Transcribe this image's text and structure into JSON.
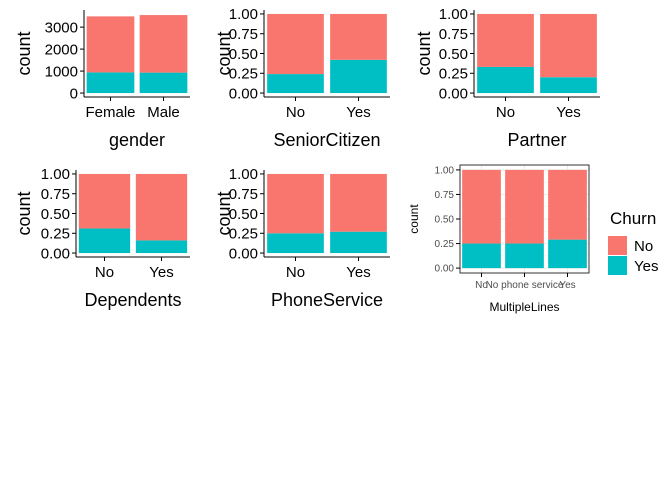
{
  "colors": {
    "no": "#F8766D",
    "yes": "#00BFC4",
    "axis": "#000000",
    "grid": "#EBEBEB",
    "panel_border": "#333333",
    "small_text": "#4D4D4D"
  },
  "legend": {
    "title": "Churn",
    "items": [
      {
        "label": "No",
        "color": "#F8766D"
      },
      {
        "label": "Yes",
        "color": "#00BFC4"
      }
    ]
  },
  "chart_data": [
    {
      "type": "bar",
      "stacked": true,
      "position": "stack",
      "title": "",
      "xlabel": "gender",
      "ylabel": "count",
      "categories": [
        "Female",
        "Male"
      ],
      "series": [
        {
          "name": "No",
          "values": [
            2550,
            2620
          ]
        },
        {
          "name": "Yes",
          "values": [
            940,
            930
          ]
        }
      ],
      "ylim": [
        0,
        3600
      ],
      "yticks": [
        0,
        1000,
        2000,
        3000
      ],
      "ytick_labels": [
        "0",
        "1000",
        "2000",
        "3000"
      ],
      "grid": false
    },
    {
      "type": "bar",
      "stacked": true,
      "position": "fill",
      "title": "",
      "xlabel": "SeniorCitizen",
      "ylabel": "count",
      "categories": [
        "No",
        "Yes"
      ],
      "series": [
        {
          "name": "No",
          "values": [
            0.76,
            0.58
          ]
        },
        {
          "name": "Yes",
          "values": [
            0.24,
            0.42
          ]
        }
      ],
      "ylim": [
        0,
        1
      ],
      "yticks": [
        0,
        0.25,
        0.5,
        0.75,
        1
      ],
      "ytick_labels": [
        "0.00",
        "0.25",
        "0.50",
        "0.75",
        "1.00"
      ],
      "grid": false
    },
    {
      "type": "bar",
      "stacked": true,
      "position": "fill",
      "title": "",
      "xlabel": "Partner",
      "ylabel": "count",
      "categories": [
        "No",
        "Yes"
      ],
      "series": [
        {
          "name": "No",
          "values": [
            0.67,
            0.8
          ]
        },
        {
          "name": "Yes",
          "values": [
            0.33,
            0.2
          ]
        }
      ],
      "ylim": [
        0,
        1
      ],
      "yticks": [
        0,
        0.25,
        0.5,
        0.75,
        1
      ],
      "ytick_labels": [
        "0.00",
        "0.25",
        "0.50",
        "0.75",
        "1.00"
      ],
      "grid": false
    },
    {
      "type": "bar",
      "stacked": true,
      "position": "fill",
      "title": "",
      "xlabel": "Dependents",
      "ylabel": "count",
      "categories": [
        "No",
        "Yes"
      ],
      "series": [
        {
          "name": "No",
          "values": [
            0.69,
            0.84
          ]
        },
        {
          "name": "Yes",
          "values": [
            0.31,
            0.16
          ]
        }
      ],
      "ylim": [
        0,
        1
      ],
      "yticks": [
        0,
        0.25,
        0.5,
        0.75,
        1
      ],
      "ytick_labels": [
        "0.00",
        "0.25",
        "0.50",
        "0.75",
        "1.00"
      ],
      "grid": false
    },
    {
      "type": "bar",
      "stacked": true,
      "position": "fill",
      "title": "",
      "xlabel": "PhoneService",
      "ylabel": "count",
      "categories": [
        "No",
        "Yes"
      ],
      "series": [
        {
          "name": "No",
          "values": [
            0.75,
            0.73
          ]
        },
        {
          "name": "Yes",
          "values": [
            0.25,
            0.27
          ]
        }
      ],
      "ylim": [
        0,
        1
      ],
      "yticks": [
        0,
        0.25,
        0.5,
        0.75,
        1
      ],
      "ytick_labels": [
        "0.00",
        "0.25",
        "0.50",
        "0.75",
        "1.00"
      ],
      "grid": false
    },
    {
      "type": "bar",
      "stacked": true,
      "position": "fill",
      "title": "",
      "xlabel": "MultipleLines",
      "ylabel": "count",
      "categories": [
        "No",
        "No phone service",
        "Yes"
      ],
      "series": [
        {
          "name": "No",
          "values": [
            0.75,
            0.75,
            0.71
          ]
        },
        {
          "name": "Yes",
          "values": [
            0.25,
            0.25,
            0.29
          ]
        }
      ],
      "ylim": [
        0,
        1
      ],
      "yticks": [
        0,
        0.25,
        0.5,
        0.75,
        1
      ],
      "ytick_labels": [
        "0.00",
        "0.25",
        "0.50",
        "0.75",
        "1.00"
      ],
      "grid": true
    }
  ]
}
